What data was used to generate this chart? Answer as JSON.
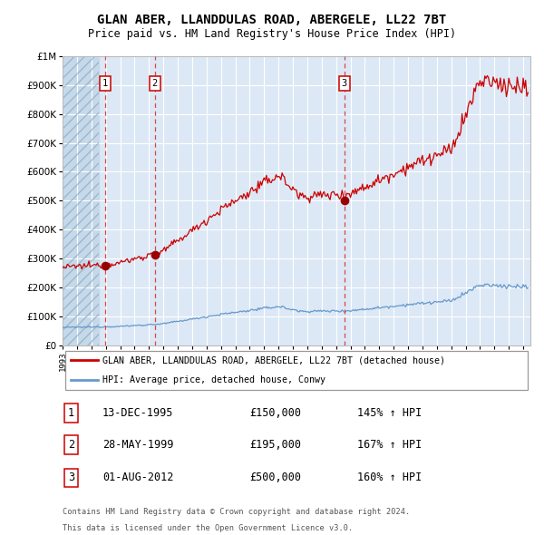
{
  "title_line1": "GLAN ABER, LLANDDULAS ROAD, ABERGELE, LL22 7BT",
  "title_line2": "Price paid vs. HM Land Registry's House Price Index (HPI)",
  "purchases": [
    {
      "label": "1",
      "date_str": "13-DEC-1995",
      "date_num": 1995.96,
      "price": 150000,
      "hpi_pct": "145% ↑ HPI"
    },
    {
      "label": "2",
      "date_str": "28-MAY-1999",
      "date_num": 1999.41,
      "price": 195000,
      "hpi_pct": "167% ↑ HPI"
    },
    {
      "label": "3",
      "date_str": "01-AUG-2012",
      "date_num": 2012.58,
      "price": 500000,
      "hpi_pct": "160% ↑ HPI"
    }
  ],
  "legend_red": "GLAN ABER, LLANDDULAS ROAD, ABERGELE, LL22 7BT (detached house)",
  "legend_blue": "HPI: Average price, detached house, Conwy",
  "footer_line1": "Contains HM Land Registry data © Crown copyright and database right 2024.",
  "footer_line2": "This data is licensed under the Open Government Licence v3.0.",
  "ylim": [
    0,
    1000000
  ],
  "xlim_start": 1993.0,
  "xlim_end": 2025.5,
  "bg_color": "#dce8f5",
  "hatch_color": "#b8cfe0",
  "grid_color": "#ffffff",
  "red_line_color": "#cc0000",
  "blue_line_color": "#6699cc",
  "marker_color": "#990000",
  "dashed_line_color": "#dd4444",
  "purchase_label_border": "#cc0000",
  "hpi_base": 61000,
  "red_scale": 2.459
}
